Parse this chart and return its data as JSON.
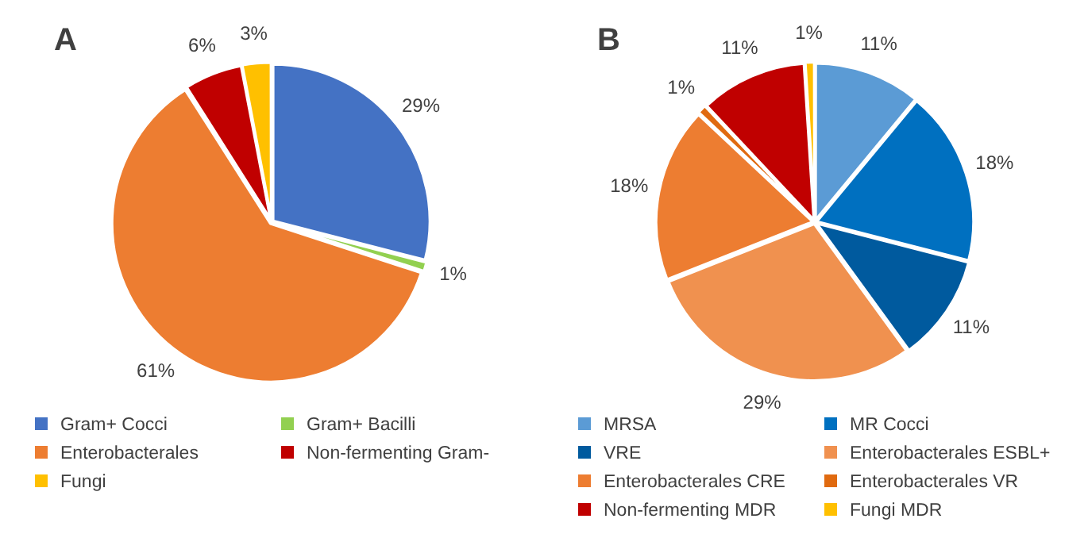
{
  "chart_data": [
    {
      "type": "pie",
      "title": "A",
      "categories": [
        "Gram+ Cocci",
        "Gram+ Bacilli",
        "Enterobacterales",
        "Non-fermenting Gram-",
        "Fungi"
      ],
      "values": [
        29,
        1,
        61,
        6,
        3
      ],
      "value_labels": [
        "29%",
        "1%",
        "61%",
        "6%",
        "3%"
      ],
      "colors": [
        "#4472c4",
        "#92d050",
        "#ed7d31",
        "#c00000",
        "#ffc000"
      ],
      "legend": "bottom"
    },
    {
      "type": "pie",
      "title": "B",
      "categories": [
        "MRSA",
        "MR Cocci",
        "VRE",
        "Enterobacterales ESBL+",
        "Enterobacterales CRE",
        "Enterobacterales VR",
        "Non-fermenting MDR",
        "Fungi MDR"
      ],
      "values": [
        11,
        18,
        11,
        29,
        18,
        1,
        11,
        1
      ],
      "value_labels": [
        "11%",
        "18%",
        "11%",
        "29%",
        "18%",
        "1%",
        "11%",
        "1%"
      ],
      "colors": [
        "#5b9bd5",
        "#0070c0",
        "#005a9e",
        "#f0914f",
        "#ed7d31",
        "#e06a10",
        "#c00000",
        "#ffc000"
      ],
      "legend": "bottom"
    }
  ]
}
